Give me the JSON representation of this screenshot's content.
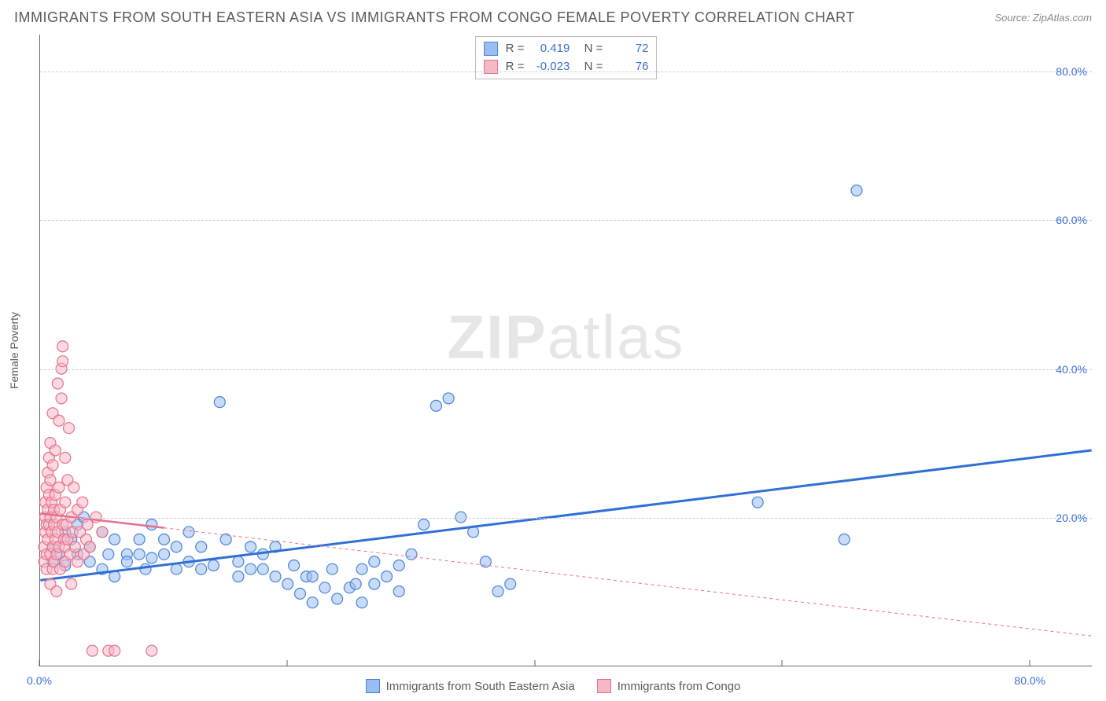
{
  "header": {
    "title": "IMMIGRANTS FROM SOUTH EASTERN ASIA VS IMMIGRANTS FROM CONGO FEMALE POVERTY CORRELATION CHART",
    "source": "Source: ZipAtlas.com"
  },
  "watermark": {
    "zip": "ZIP",
    "atlas": "atlas"
  },
  "chart": {
    "type": "scatter",
    "background_color": "#ffffff",
    "grid_color": "#d0d0d0",
    "axis_color": "#666666",
    "tick_label_color": "#3b6fd6",
    "label_color": "#5a5a5a",
    "ylabel": "Female Poverty",
    "xlim": [
      0,
      85
    ],
    "ylim": [
      0,
      85
    ],
    "xticks": [
      0,
      20,
      40,
      60,
      80
    ],
    "xtick_labels": [
      "0.0%",
      "",
      "",
      "",
      "80.0%"
    ],
    "yticks": [
      20,
      40,
      60,
      80
    ],
    "ytick_labels": [
      "20.0%",
      "40.0%",
      "60.0%",
      "80.0%"
    ],
    "marker_radius": 7,
    "marker_opacity": 0.55,
    "series": [
      {
        "name": "Immigrants from South Eastern Asia",
        "color_fill": "#9bbef0",
        "color_stroke": "#4a84d8",
        "trend": {
          "x1": 0,
          "y1": 11.5,
          "x2": 85,
          "y2": 29.0,
          "color": "#2f6fd6",
          "width": 3,
          "dash": "none"
        },
        "points": [
          [
            1,
            14
          ],
          [
            1,
            16
          ],
          [
            1.5,
            15
          ],
          [
            2,
            18
          ],
          [
            2,
            13.5
          ],
          [
            2.5,
            17
          ],
          [
            3,
            15
          ],
          [
            3,
            19
          ],
          [
            3.5,
            20
          ],
          [
            4,
            14
          ],
          [
            4,
            16
          ],
          [
            5,
            18
          ],
          [
            5,
            13
          ],
          [
            5.5,
            15
          ],
          [
            6,
            12
          ],
          [
            6,
            17
          ],
          [
            7,
            15
          ],
          [
            7,
            14
          ],
          [
            8,
            15
          ],
          [
            8,
            17
          ],
          [
            8.5,
            13
          ],
          [
            9,
            19
          ],
          [
            9,
            14.5
          ],
          [
            10,
            15
          ],
          [
            10,
            17
          ],
          [
            11,
            13
          ],
          [
            11,
            16
          ],
          [
            12,
            14
          ],
          [
            12,
            18
          ],
          [
            13,
            16
          ],
          [
            13,
            13
          ],
          [
            14,
            13.5
          ],
          [
            14.5,
            35.5
          ],
          [
            15,
            17
          ],
          [
            16,
            12
          ],
          [
            16,
            14
          ],
          [
            17,
            16
          ],
          [
            17,
            13
          ],
          [
            18,
            13
          ],
          [
            18,
            15
          ],
          [
            19,
            16
          ],
          [
            19,
            12
          ],
          [
            20,
            11
          ],
          [
            20.5,
            13.5
          ],
          [
            21,
            9.7
          ],
          [
            21.5,
            12
          ],
          [
            22,
            8.5
          ],
          [
            22,
            12
          ],
          [
            23,
            10.5
          ],
          [
            23.6,
            13
          ],
          [
            24,
            9
          ],
          [
            25,
            10.5
          ],
          [
            25.5,
            11
          ],
          [
            26,
            13
          ],
          [
            26,
            8.5
          ],
          [
            27,
            11
          ],
          [
            27,
            14
          ],
          [
            28,
            12
          ],
          [
            29,
            10
          ],
          [
            29,
            13.5
          ],
          [
            30,
            15
          ],
          [
            31,
            19
          ],
          [
            32,
            35
          ],
          [
            33,
            36
          ],
          [
            34,
            20
          ],
          [
            35,
            18
          ],
          [
            36,
            14
          ],
          [
            37,
            10
          ],
          [
            38,
            11
          ],
          [
            58,
            22
          ],
          [
            65,
            17
          ],
          [
            66,
            64
          ]
        ]
      },
      {
        "name": "Immigrants from Congo",
        "color_fill": "#f5b9c6",
        "color_stroke": "#e76f8c",
        "trend": {
          "x1": 0,
          "y1": 20.5,
          "x2": 85,
          "y2": 4.0,
          "color": "#e76f8c",
          "width": 1,
          "dash": "4,4",
          "solid_until": 10
        },
        "points": [
          [
            0.3,
            14
          ],
          [
            0.3,
            16
          ],
          [
            0.4,
            18
          ],
          [
            0.4,
            20
          ],
          [
            0.4,
            22
          ],
          [
            0.5,
            19
          ],
          [
            0.5,
            15
          ],
          [
            0.5,
            13
          ],
          [
            0.5,
            24
          ],
          [
            0.6,
            26
          ],
          [
            0.6,
            21
          ],
          [
            0.6,
            17
          ],
          [
            0.7,
            28
          ],
          [
            0.7,
            23
          ],
          [
            0.7,
            19
          ],
          [
            0.8,
            30
          ],
          [
            0.8,
            20
          ],
          [
            0.8,
            15
          ],
          [
            0.8,
            11
          ],
          [
            0.8,
            25
          ],
          [
            0.9,
            22
          ],
          [
            0.9,
            18
          ],
          [
            1.0,
            13
          ],
          [
            1.0,
            16
          ],
          [
            1.0,
            34
          ],
          [
            1.0,
            27
          ],
          [
            1.1,
            19
          ],
          [
            1.1,
            14
          ],
          [
            1.1,
            21
          ],
          [
            1.2,
            17
          ],
          [
            1.2,
            29
          ],
          [
            1.2,
            23
          ],
          [
            1.3,
            15
          ],
          [
            1.3,
            20
          ],
          [
            1.3,
            10
          ],
          [
            1.4,
            18
          ],
          [
            1.4,
            38
          ],
          [
            1.5,
            33
          ],
          [
            1.5,
            24
          ],
          [
            1.5,
            16
          ],
          [
            1.6,
            21
          ],
          [
            1.6,
            13
          ],
          [
            1.7,
            36
          ],
          [
            1.7,
            40
          ],
          [
            1.8,
            19
          ],
          [
            1.8,
            43
          ],
          [
            1.8,
            41
          ],
          [
            1.9,
            17
          ],
          [
            2.0,
            16
          ],
          [
            2.0,
            28
          ],
          [
            2.0,
            22
          ],
          [
            2.0,
            14
          ],
          [
            2.1,
            19
          ],
          [
            2.2,
            25
          ],
          [
            2.2,
            17
          ],
          [
            2.3,
            32
          ],
          [
            2.4,
            15
          ],
          [
            2.5,
            20
          ],
          [
            2.5,
            11
          ],
          [
            2.6,
            18
          ],
          [
            2.7,
            24
          ],
          [
            2.8,
            16
          ],
          [
            3.0,
            14
          ],
          [
            3.0,
            21
          ],
          [
            3.2,
            18
          ],
          [
            3.4,
            22
          ],
          [
            3.5,
            15
          ],
          [
            3.7,
            17
          ],
          [
            3.8,
            19
          ],
          [
            4.0,
            16
          ],
          [
            4.2,
            2
          ],
          [
            4.5,
            20
          ],
          [
            5.0,
            18
          ],
          [
            5.5,
            2
          ],
          [
            6.0,
            2
          ],
          [
            9.0,
            2
          ]
        ]
      }
    ],
    "bottom_legend": {
      "items": [
        {
          "label": "Immigrants from South Eastern Asia",
          "fill": "#9bbef0",
          "stroke": "#4a84d8"
        },
        {
          "label": "Immigrants from Congo",
          "fill": "#f5b9c6",
          "stroke": "#e76f8c"
        }
      ]
    },
    "correlation_box": {
      "rows": [
        {
          "swatch_fill": "#9bbef0",
          "swatch_stroke": "#4a84d8",
          "r_label": "R =",
          "r": "0.419",
          "n_label": "N =",
          "n": "72"
        },
        {
          "swatch_fill": "#f5b9c6",
          "swatch_stroke": "#e76f8c",
          "r_label": "R =",
          "r": "-0.023",
          "n_label": "N =",
          "n": "76"
        }
      ]
    }
  }
}
